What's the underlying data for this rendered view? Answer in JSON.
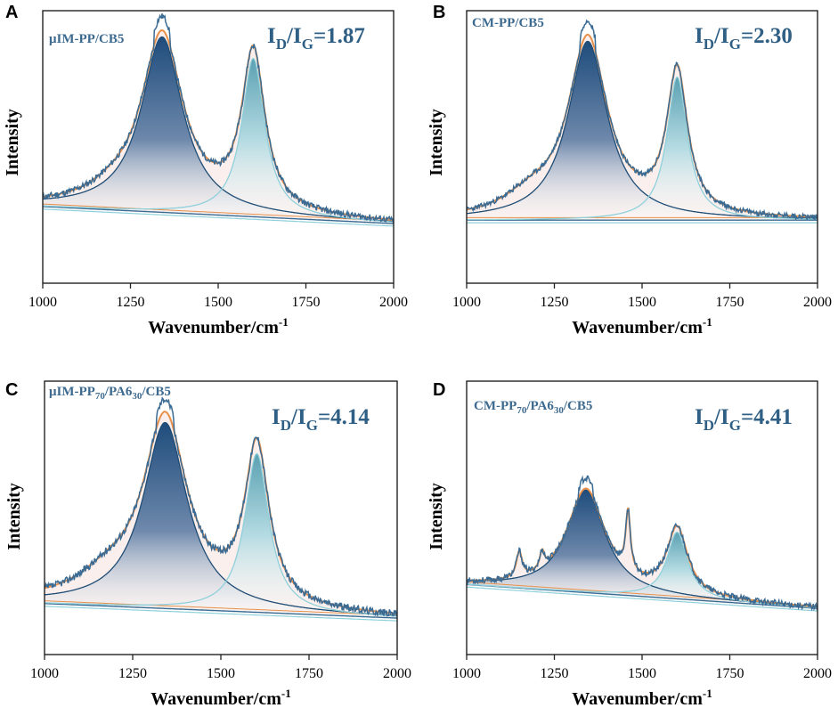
{
  "chart_data": [
    {
      "type": "line",
      "panel": "A",
      "sample": "μIM-PP/CB5",
      "ratio": {
        "prefix": "I",
        "sub1": "D",
        "slash": "/I",
        "sub2": "G",
        "value": "=1.87"
      },
      "xlabel": "Wavenumber/cm",
      "xlabel_sup": "-1",
      "ylabel": "Intensity",
      "xlim": [
        1000,
        2000
      ],
      "ylim": [
        -0.35,
        1.25
      ],
      "xticks": [
        1000,
        1250,
        1500,
        1750,
        2000
      ],
      "xtick_labels": [
        "1000",
        "1250",
        "1500",
        "1750",
        "2000"
      ],
      "baseline": {
        "y0": 0.1,
        "y1": 0.0
      },
      "d_band": {
        "center": 1340,
        "width": 72,
        "height": 1.03
      },
      "g_band": {
        "center": 1600,
        "width": 40,
        "height": 0.93
      },
      "shoulder": {
        "center": 1200,
        "width": 90,
        "height": 0.06
      },
      "raw_peak_scale": 1.08,
      "noise": 0.018,
      "seed": 11
    },
    {
      "type": "line",
      "panel": "B",
      "sample": "CM-PP/CB5",
      "ratio": {
        "prefix": "I",
        "sub1": "D",
        "slash": "/I",
        "sub2": "G",
        "value": "=2.30"
      },
      "xlabel": "Wavenumber/cm",
      "xlabel_sup": "-1",
      "ylabel": "Intensity",
      "xlim": [
        1000,
        2000
      ],
      "ylim": [
        -0.35,
        1.25
      ],
      "xticks": [
        1000,
        1250,
        1500,
        1750,
        2000
      ],
      "xtick_labels": [
        "1000",
        "1250",
        "1500",
        "1750",
        "2000"
      ],
      "baseline": {
        "y0": 0.02,
        "y1": 0.02
      },
      "d_band": {
        "center": 1345,
        "width": 68,
        "height": 1.05
      },
      "g_band": {
        "center": 1600,
        "width": 36,
        "height": 0.84
      },
      "shoulder": {
        "center": 1180,
        "width": 90,
        "height": 0.1
      },
      "raw_peak_scale": 1.08,
      "noise": 0.015,
      "seed": 23
    },
    {
      "type": "line",
      "panel": "C",
      "sample": "μIM-PP",
      "sample_sub1": "70",
      "sample_mid": "/PA6",
      "sample_sub2": "30",
      "sample_end": "/CB5",
      "ratio": {
        "prefix": "I",
        "sub1": "D",
        "slash": "/I",
        "sub2": "G",
        "value": "=4.14"
      },
      "xlabel": "Wavenumber/cm",
      "xlabel_sup": "-1",
      "ylabel": "Intensity",
      "xlim": [
        1000,
        2000
      ],
      "ylim": [
        -0.25,
        1.25
      ],
      "xticks": [
        1000,
        1250,
        1500,
        1750,
        2000
      ],
      "xtick_labels": [
        "1000",
        "1250",
        "1500",
        "1750",
        "2000"
      ],
      "baseline": {
        "y0": 0.03,
        "y1": -0.05
      },
      "d_band": {
        "center": 1342,
        "width": 76,
        "height": 1.02
      },
      "g_band": {
        "center": 1602,
        "width": 42,
        "height": 0.87
      },
      "shoulder": {
        "center": 1180,
        "width": 110,
        "height": 0.12
      },
      "raw_peak_scale": 1.07,
      "noise": 0.02,
      "seed": 37
    },
    {
      "type": "line",
      "panel": "D",
      "sample": "CM-PP",
      "sample_sub1": "70",
      "sample_mid": "/PA6",
      "sample_sub2": "30",
      "sample_end": "/CB5",
      "ratio": {
        "prefix": "I",
        "sub1": "D",
        "slash": "/I",
        "sub2": "G",
        "value": "=4.41"
      },
      "xlabel": "Wavenumber/cm",
      "xlabel_sup": "-1",
      "ylabel": "Intensity",
      "xlim": [
        1000,
        2000
      ],
      "ylim": [
        -0.35,
        1.25
      ],
      "xticks": [
        1000,
        1250,
        1500,
        1750,
        2000
      ],
      "xtick_labels": [
        "1000",
        "1250",
        "1500",
        "1750",
        "2000"
      ],
      "baseline": {
        "y0": 0.06,
        "y1": -0.08
      },
      "d_band": {
        "center": 1340,
        "width": 66,
        "height": 0.6
      },
      "g_band": {
        "center": 1600,
        "width": 36,
        "height": 0.39
      },
      "shoulder": {
        "center": 1460,
        "width": 8,
        "height": 0.35
      },
      "extra_peaks": [
        {
          "center": 1150,
          "width": 10,
          "height": 0.15
        },
        {
          "center": 1215,
          "width": 8,
          "height": 0.1
        }
      ],
      "raw_peak_scale": 1.1,
      "noise": 0.018,
      "seed": 53
    }
  ],
  "colors": {
    "raw": "#3b6b93",
    "fit_envelope": "#e8904a",
    "d_band_dark": "#2e5a85",
    "g_band_light": "#6fb7c6",
    "d_band_line": "#1f4c74",
    "g_band_line": "#8fd0db",
    "fill_pink": "#f6e1dc",
    "baseline_line": "#3b6b93"
  }
}
